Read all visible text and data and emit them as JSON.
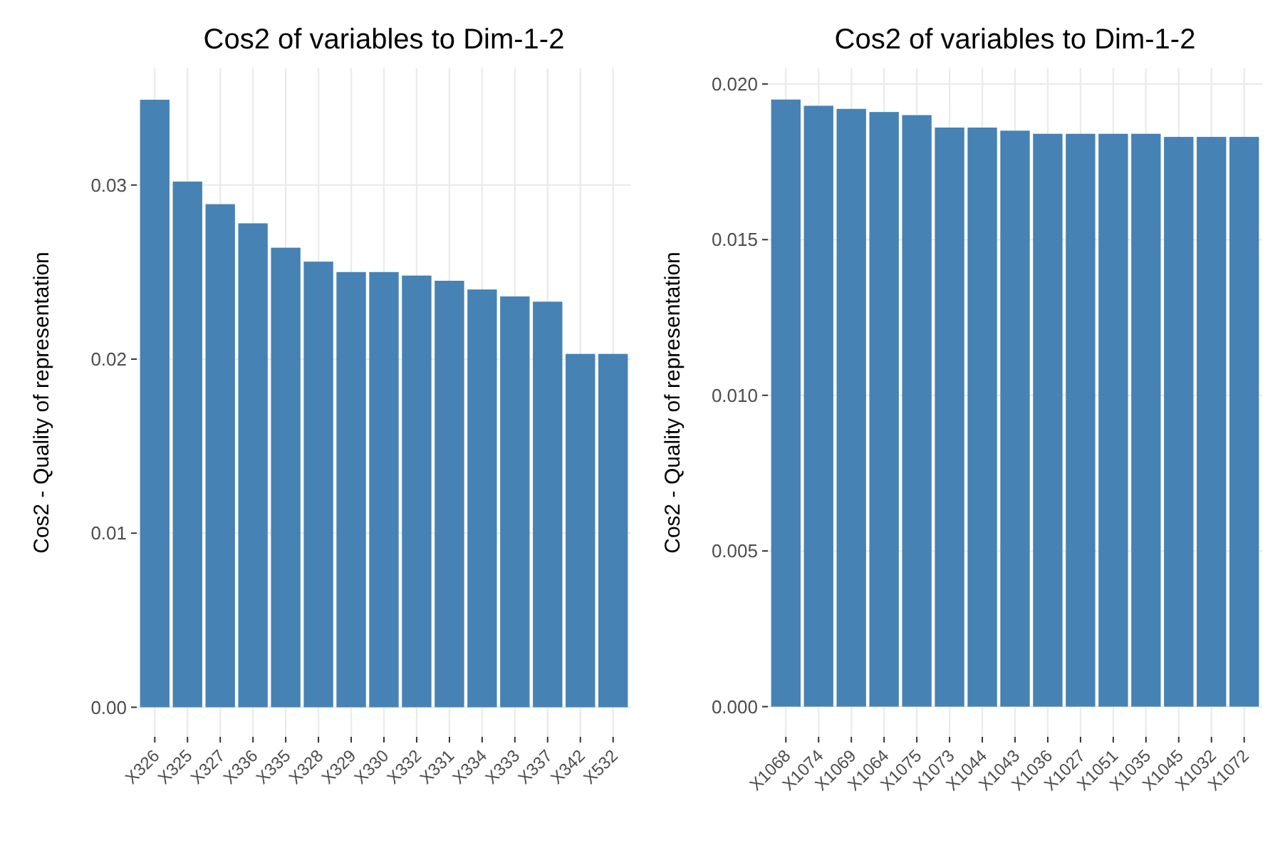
{
  "chart_data": [
    {
      "type": "bar",
      "title": "Cos2 of variables to Dim-1-2",
      "ylabel": "Cos2 - Quality of representation",
      "categories": [
        "X326",
        "X325",
        "X327",
        "X336",
        "X335",
        "X328",
        "X329",
        "X330",
        "X332",
        "X331",
        "X334",
        "X333",
        "X337",
        "X342",
        "X532"
      ],
      "values": [
        0.0349,
        0.0302,
        0.0289,
        0.0278,
        0.0264,
        0.0256,
        0.025,
        0.025,
        0.0248,
        0.0245,
        0.024,
        0.0236,
        0.0233,
        0.0203,
        0.0203
      ],
      "color": "#4682b4",
      "ylim": [
        -0.0017,
        0.0367
      ],
      "yticks": [
        {
          "value": 0,
          "label": "0.00"
        },
        {
          "value": 0.01,
          "label": "0.01"
        },
        {
          "value": 0.02,
          "label": "0.02"
        },
        {
          "value": 0.03,
          "label": "0.03"
        }
      ],
      "grid": true
    },
    {
      "type": "bar",
      "title": "Cos2 of variables to Dim-1-2",
      "ylabel": "Cos2 - Quality of representation",
      "categories": [
        "X1068",
        "X1074",
        "X1069",
        "X1064",
        "X1075",
        "X1073",
        "X1044",
        "X1043",
        "X1036",
        "X1027",
        "X1051",
        "X1035",
        "X1045",
        "X1032",
        "X1072"
      ],
      "values": [
        0.0195,
        0.0193,
        0.0192,
        0.0191,
        0.019,
        0.0186,
        0.0186,
        0.0185,
        0.0184,
        0.0184,
        0.0184,
        0.0184,
        0.0183,
        0.0183,
        0.0183
      ],
      "color": "#4682b4",
      "ylim": [
        -0.00097,
        0.0205
      ],
      "yticks": [
        {
          "value": 0,
          "label": "0.000"
        },
        {
          "value": 0.005,
          "label": "0.005"
        },
        {
          "value": 0.01,
          "label": "0.010"
        },
        {
          "value": 0.015,
          "label": "0.015"
        },
        {
          "value": 0.02,
          "label": "0.020"
        }
      ],
      "grid": true
    }
  ]
}
